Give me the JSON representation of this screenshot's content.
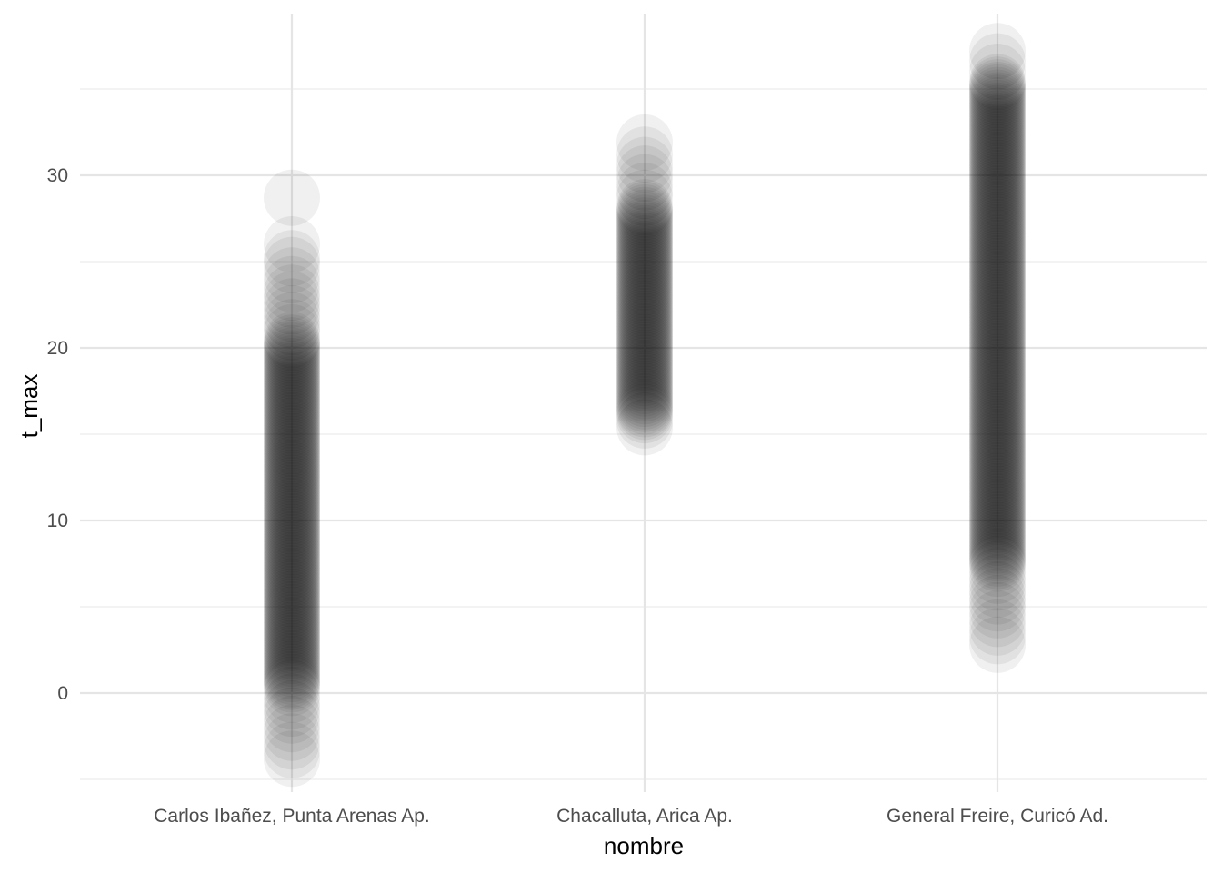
{
  "chart_data": {
    "type": "scatter",
    "title": "",
    "xlabel": "nombre",
    "ylabel": "t_max",
    "categories": [
      "Carlos Ibañez, Punta Arenas Ap.",
      "Chacalluta, Arica Ap.",
      "General Freire, Curicó Ad."
    ],
    "y_ticks": [
      "0",
      "10",
      "20",
      "30"
    ],
    "y_tick_values": [
      0,
      10,
      20,
      30
    ],
    "ylim": [
      -5,
      38.5
    ],
    "grid": true,
    "legend": "none",
    "point_color": "#000000",
    "point_alpha": 0.06,
    "background": "#ffffff",
    "series": [
      {
        "category": "Carlos Ibañez, Punta Arenas Ap.",
        "dense_range": [
          0.5,
          20.5
        ],
        "sparse_values": [
          28.7,
          26.0,
          25.2,
          24.8,
          24.2,
          23.7,
          23.2,
          22.8,
          22.4,
          22.0,
          21.6,
          21.2,
          20.9,
          0.3,
          -0.1,
          -0.5,
          -0.9,
          -1.3,
          -1.8,
          -2.3,
          -2.8,
          -3.3,
          -3.8
        ]
      },
      {
        "category": "Chacalluta, Arica Ap.",
        "dense_range": [
          16.3,
          28.2
        ],
        "sparse_values": [
          31.9,
          31.2,
          30.6,
          30.1,
          29.6,
          29.1,
          28.7,
          16.1,
          15.8,
          15.4
        ]
      },
      {
        "category": "General Freire, Curicó Ad.",
        "dense_range": [
          7.5,
          35.5
        ],
        "sparse_values": [
          37.2,
          36.6,
          36.0,
          7.2,
          6.8,
          6.4,
          6.0,
          5.6,
          5.2,
          4.8,
          4.3,
          3.8,
          3.3,
          2.8
        ]
      }
    ]
  }
}
